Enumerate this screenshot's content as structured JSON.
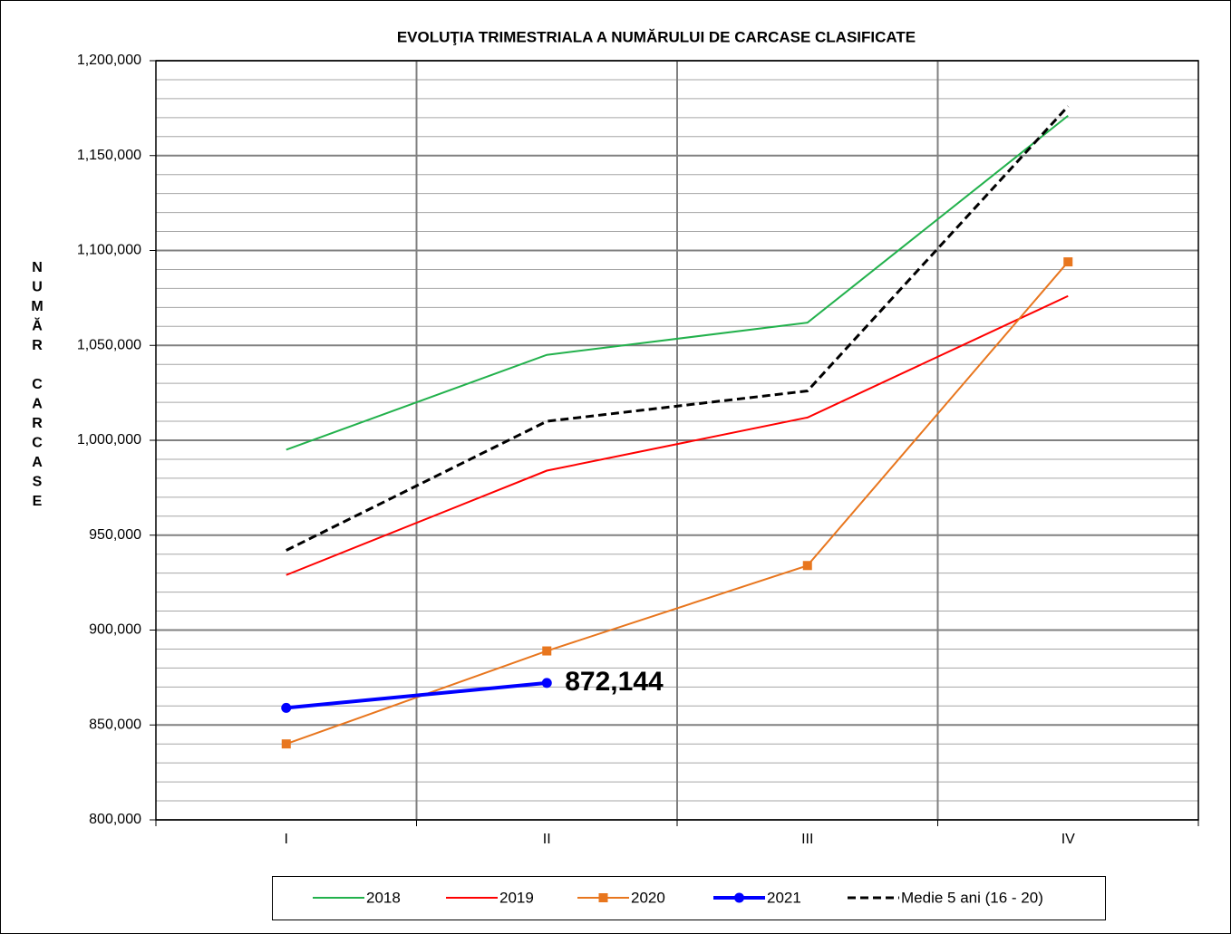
{
  "chart_data": {
    "type": "line",
    "title": "EVOLUŢIA TRIMESTRIALA  A NUMĂRULUI DE CARCASE CLASIFICATE",
    "y_label": "NUMĂR CARCASE",
    "categories": [
      "I",
      "II",
      "III",
      "IV"
    ],
    "ylim": [
      800000,
      1200000
    ],
    "yticks": [
      {
        "value": 800000,
        "label": "800,000"
      },
      {
        "value": 850000,
        "label": "850,000"
      },
      {
        "value": 900000,
        "label": "900,000"
      },
      {
        "value": 950000,
        "label": "950,000"
      },
      {
        "value": 1000000,
        "label": "1,000,000"
      },
      {
        "value": 1050000,
        "label": "1,050,000"
      },
      {
        "value": 1100000,
        "label": "1,100,000"
      },
      {
        "value": 1150000,
        "label": "1,150,000"
      },
      {
        "value": 1200000,
        "label": "1,200,000"
      }
    ],
    "grid": true,
    "legend": "bottom",
    "series": [
      {
        "name": "2018",
        "color": "#22b14c",
        "width": 2,
        "values": [
          995000,
          1045000,
          1062000,
          1171000
        ]
      },
      {
        "name": "2019",
        "color": "#ff0000",
        "width": 2,
        "values": [
          929000,
          984000,
          1012000,
          1076000
        ]
      },
      {
        "name": "2020",
        "color": "#e8761e",
        "width": 2,
        "marker": "square",
        "values": [
          840000,
          889000,
          934000,
          1094000
        ]
      },
      {
        "name": "2021",
        "color": "#0000ff",
        "width": 4,
        "marker": "circle",
        "values": [
          859000,
          872144,
          null,
          null
        ],
        "value_labels": [
          null,
          "872,144",
          null,
          null
        ]
      },
      {
        "name": "Medie 5 ani (16 - 20)",
        "color": "#000000",
        "width": 3,
        "dash": true,
        "values": [
          942000,
          1010000,
          1026000,
          1176000
        ]
      }
    ]
  }
}
